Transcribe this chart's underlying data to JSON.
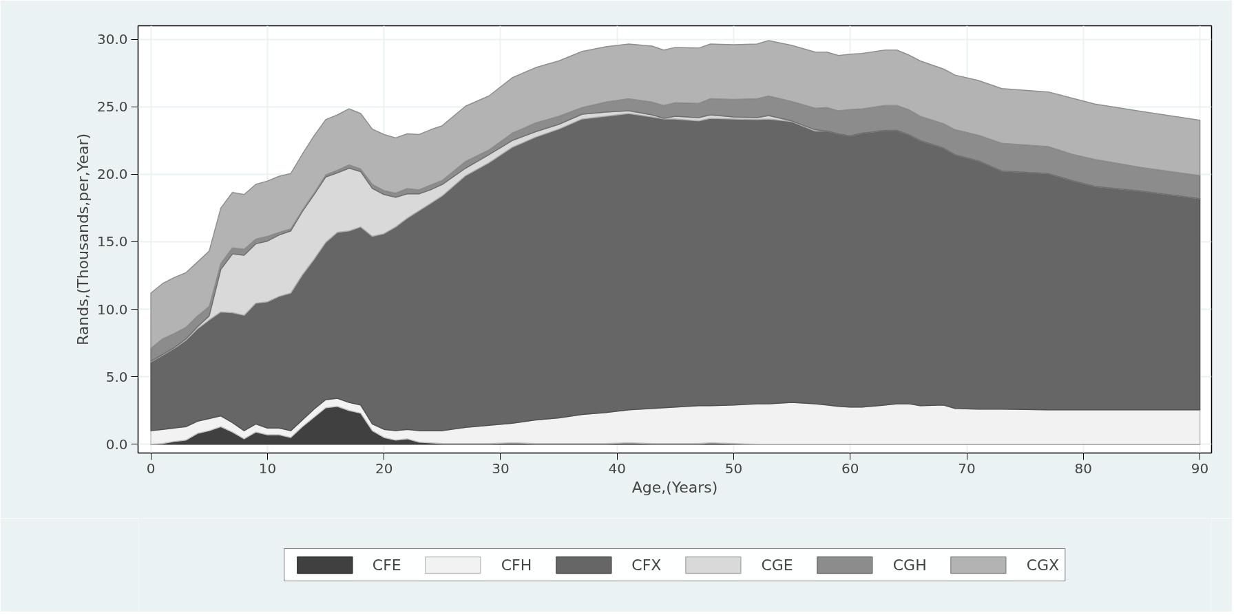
{
  "chart_data": {
    "type": "area",
    "stacked": true,
    "xlabel": "Age,(Years)",
    "ylabel": "Rands,(Thousands,per,Year)",
    "x": [
      0,
      1,
      2,
      3,
      4,
      5,
      6,
      7,
      8,
      9,
      10,
      11,
      12,
      13,
      14,
      15,
      16,
      17,
      18,
      19,
      20,
      21,
      22,
      23,
      24,
      25,
      27,
      29,
      31,
      33,
      35,
      37,
      39,
      41,
      43,
      44,
      45,
      47,
      48,
      50,
      52,
      53,
      55,
      57,
      58,
      59,
      60,
      61,
      63,
      64,
      65,
      66,
      68,
      69,
      71,
      73,
      77,
      79,
      81,
      85,
      90
    ],
    "xlim": [
      -1.1,
      91
    ],
    "xticks": [
      0,
      10,
      20,
      30,
      40,
      50,
      60,
      70,
      80,
      90
    ],
    "ylim": [
      -0.65,
      31
    ],
    "yticks": [
      {
        "value": 0,
        "label": "0.0"
      },
      {
        "value": 5,
        "label": "5.0"
      },
      {
        "value": 10,
        "label": "10.0"
      },
      {
        "value": 15,
        "label": "15.0"
      },
      {
        "value": 20,
        "label": "20.0"
      },
      {
        "value": 25,
        "label": "25.0"
      },
      {
        "value": 30,
        "label": "30.0"
      }
    ],
    "grid": true,
    "legend": "bottom",
    "series": [
      {
        "name": "CFE",
        "color": "#404040",
        "values": [
          0,
          0.05,
          0.2,
          0.3,
          0.8,
          1.0,
          1.3,
          0.9,
          0.4,
          0.9,
          0.7,
          0.7,
          0.5,
          1.3,
          2.0,
          2.7,
          2.8,
          2.5,
          2.3,
          1.0,
          0.5,
          0.3,
          0.4,
          0.15,
          0.1,
          0.05,
          0.05,
          0.05,
          0.1,
          0.05,
          0.05,
          0.05,
          0.05,
          0.1,
          0.05,
          0.05,
          0.05,
          0.05,
          0.1,
          0.05,
          0,
          0,
          0,
          0,
          0,
          0,
          0,
          0,
          0,
          0,
          0,
          0,
          0,
          0,
          0,
          0,
          0,
          0,
          0,
          0,
          0
        ]
      },
      {
        "name": "CFH",
        "color": "#f2f2f2",
        "values": [
          1.0,
          1.05,
          1.0,
          1.0,
          0.9,
          0.9,
          0.8,
          0.7,
          0.6,
          0.6,
          0.5,
          0.5,
          0.5,
          0.5,
          0.6,
          0.6,
          0.6,
          0.6,
          0.6,
          0.5,
          0.6,
          0.7,
          0.7,
          0.85,
          0.9,
          0.95,
          1.2,
          1.35,
          1.45,
          1.75,
          1.9,
          2.15,
          2.3,
          2.45,
          2.6,
          2.65,
          2.7,
          2.8,
          2.75,
          2.85,
          3.0,
          3.0,
          3.1,
          3.0,
          2.9,
          2.8,
          2.75,
          2.75,
          2.9,
          3.0,
          3.0,
          2.85,
          2.9,
          2.65,
          2.6,
          2.6,
          2.55,
          2.55,
          2.55,
          2.55,
          2.55
        ]
      },
      {
        "name": "CFX",
        "color": "#666666",
        "values": [
          5.1,
          5.5,
          5.9,
          6.4,
          6.85,
          7.3,
          7.7,
          8.15,
          8.55,
          8.95,
          9.35,
          9.75,
          10.2,
          10.75,
          11.1,
          11.65,
          12.3,
          12.7,
          13.2,
          13.9,
          14.5,
          15.1,
          15.65,
          16.3,
          16.85,
          17.4,
          18.65,
          19.45,
          20.45,
          20.95,
          21.4,
          21.9,
          21.95,
          21.95,
          21.6,
          21.4,
          21.35,
          21.1,
          21.3,
          21.2,
          21.05,
          21.1,
          20.8,
          20.2,
          20.3,
          20.2,
          20.1,
          20.3,
          20.35,
          20.25,
          19.95,
          19.65,
          19.05,
          18.8,
          18.4,
          17.65,
          17.5,
          17.0,
          16.55,
          16.2,
          15.65
        ]
      },
      {
        "name": "CGE",
        "color": "#d9d9d9",
        "values": [
          0.05,
          0.05,
          0.05,
          0.1,
          0.15,
          0.3,
          3.15,
          4.35,
          4.45,
          4.4,
          4.5,
          4.55,
          4.6,
          4.7,
          4.8,
          4.85,
          4.4,
          4.65,
          4.1,
          3.55,
          2.9,
          2.2,
          1.8,
          1.25,
          1.0,
          0.85,
          0.55,
          0.6,
          0.5,
          0.4,
          0.35,
          0.35,
          0.3,
          0.2,
          0.15,
          0.05,
          0.2,
          0.25,
          0.25,
          0.15,
          0.15,
          0.25,
          0.05,
          0.1,
          0,
          0,
          0,
          0,
          0,
          0,
          0,
          0,
          0,
          0,
          0,
          0,
          0,
          0,
          0,
          0,
          0
        ]
      },
      {
        "name": "CGH",
        "color": "#8c8c8c",
        "values": [
          0.95,
          1.15,
          1.05,
          0.85,
          0.8,
          0.7,
          0.45,
          0.45,
          0.45,
          0.35,
          0.35,
          0.2,
          0.15,
          0.1,
          0.1,
          0.15,
          0.2,
          0.25,
          0.2,
          0.3,
          0.3,
          0.3,
          0.4,
          0.3,
          0.35,
          0.3,
          0.5,
          0.35,
          0.55,
          0.65,
          0.6,
          0.5,
          0.75,
          0.9,
          0.95,
          0.95,
          1.0,
          1.05,
          1.2,
          1.3,
          1.4,
          1.45,
          1.45,
          1.6,
          1.75,
          1.7,
          1.95,
          1.8,
          1.85,
          1.85,
          1.85,
          1.8,
          1.8,
          1.85,
          1.9,
          2.05,
          2.0,
          1.95,
          2.0,
          1.75,
          1.7
        ]
      },
      {
        "name": "CGX",
        "color": "#b3b3b3",
        "values": [
          4.1,
          4.1,
          4.15,
          4.05,
          4.0,
          4.1,
          4.1,
          4.1,
          4.05,
          4.05,
          4.1,
          4.15,
          4.1,
          4.15,
          4.25,
          4.1,
          4.1,
          4.15,
          4.1,
          4.1,
          4.15,
          4.1,
          4.05,
          4.1,
          4.1,
          4.05,
          4.1,
          4.0,
          4.1,
          4.1,
          4.1,
          4.15,
          4.1,
          4.05,
          4.15,
          4.1,
          4.1,
          4.1,
          4.05,
          4.05,
          4.05,
          4.1,
          4.15,
          4.15,
          4.1,
          4.1,
          4.1,
          4.1,
          4.1,
          4.1,
          4.05,
          4.1,
          4.05,
          4.05,
          4.05,
          4.05,
          4.05,
          4.15,
          4.1,
          4.15,
          4.1
        ]
      }
    ]
  }
}
